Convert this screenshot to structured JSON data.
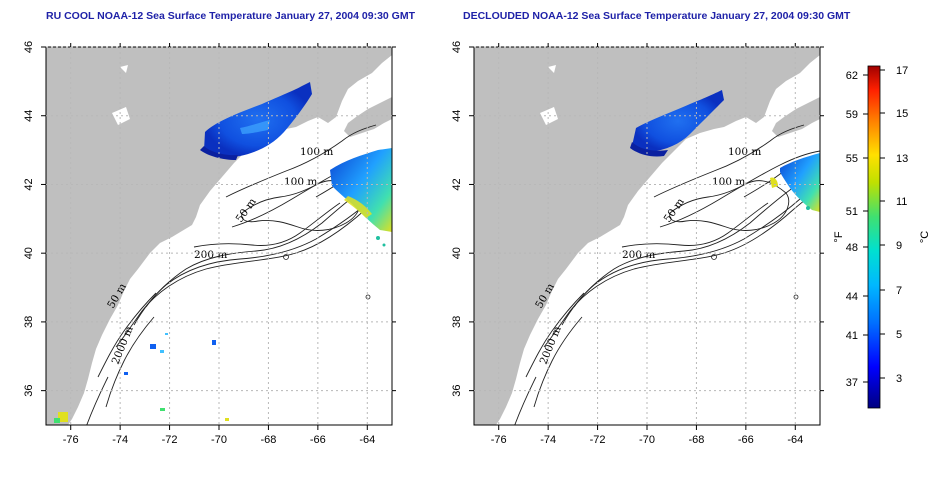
{
  "panels": [
    {
      "title": "RU COOL NOAA-12 Sea Surface Temperature January 27, 2004 09:30 GMT",
      "x_ticks": [
        "-76",
        "-74",
        "-72",
        "-70",
        "-68",
        "-66",
        "-64"
      ],
      "y_ticks": [
        "46",
        "44",
        "42",
        "40",
        "38",
        "36"
      ],
      "contour_labels": [
        "100 m",
        "100 m",
        "50 m",
        "200 m",
        "50 m",
        "2000 m"
      ]
    },
    {
      "title": "DECLOUDED NOAA-12 Sea Surface Temperature January 27, 2004 09:30 GMT",
      "x_ticks": [
        "-76",
        "-74",
        "-72",
        "-70",
        "-68",
        "-66",
        "-64"
      ],
      "y_ticks": [
        "46",
        "44",
        "42",
        "40",
        "38",
        "36"
      ],
      "contour_labels": [
        "100 m",
        "100 m",
        "50 m",
        "200 m",
        "50 m",
        "2000 m"
      ]
    }
  ],
  "colorbar": {
    "fahrenheit_label": "°F",
    "celsius_label": "°C",
    "fahrenheit_ticks": [
      "62",
      "59",
      "55",
      "51",
      "48",
      "44",
      "41",
      "37"
    ],
    "celsius_ticks": [
      "17",
      "15",
      "13",
      "11",
      "9",
      "7",
      "5",
      "3"
    ],
    "colors": [
      "#000080",
      "#0000ff",
      "#0080ff",
      "#00c0ff",
      "#00e0c0",
      "#60e060",
      "#e0e000",
      "#ffa000",
      "#ff3000",
      "#a00000"
    ]
  },
  "colors": {
    "land": "#bfbfbf",
    "ocean": "#ffffff",
    "title": "#1f22a8"
  }
}
